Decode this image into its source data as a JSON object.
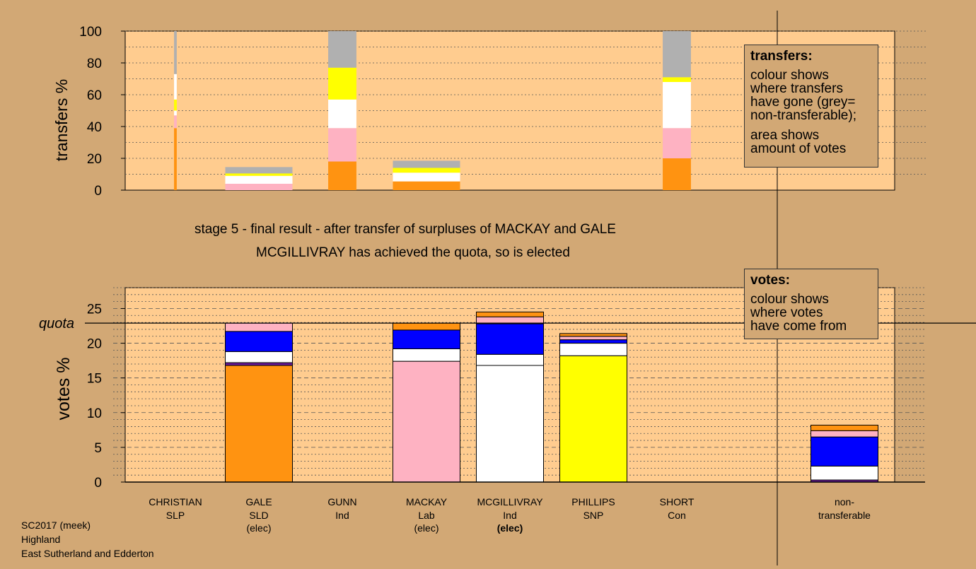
{
  "colors": {
    "background": "#d2a875",
    "plot_bg": "#ffcc8f",
    "orange": "#ff9311",
    "pink": "#feb2c2",
    "white": "#ffffff",
    "yellow": "#ffff00",
    "grey": "#b0b0b0",
    "blue": "#0000ff",
    "purple": "#6a1a9a"
  },
  "captions": {
    "stage": "stage 5 - final result - after transfer of surpluses of MACKAY and GALE",
    "elected": "MCGILLIVRAY has achieved the quota, so is elected"
  },
  "legend_transfers": {
    "heading": "transfers:",
    "lines": [
      "colour shows",
      "where transfers",
      "have gone (grey=",
      "non-transferable);"
    ],
    "lines2": [
      "area shows",
      "amount of votes"
    ]
  },
  "legend_votes": {
    "heading": "votes:",
    "lines": [
      "colour shows",
      "where votes",
      "have come from"
    ]
  },
  "footer": {
    "election": "SC2017 (meek)",
    "council": "Highland",
    "ward": "East Sutherland and Edderton"
  },
  "chart_data": [
    {
      "type": "bar",
      "stacked": true,
      "ylabel": "transfers %",
      "ylim": [
        0,
        100
      ],
      "yticks": [
        0,
        20,
        40,
        60,
        80,
        100
      ],
      "categories": [
        "CHRISTIAN",
        "GALE",
        "GUNN",
        "MACKAY",
        "MCGILLIVRAY",
        "PHILLIPS",
        "SHORT"
      ],
      "bar_widths_relative": [
        0.04,
        1,
        0.42,
        1,
        0,
        0,
        0.42
      ],
      "segments": [
        [],
        [
          {
            "color": "pink",
            "value": 4
          },
          {
            "color": "white",
            "value": 5
          },
          {
            "color": "yellow",
            "value": 1.5
          },
          {
            "color": "grey",
            "value": 4
          }
        ],
        [
          {
            "color": "orange",
            "value": 18
          },
          {
            "color": "pink",
            "value": 21
          },
          {
            "color": "white",
            "value": 18
          },
          {
            "color": "yellow",
            "value": 20
          },
          {
            "color": "grey",
            "value": 23
          }
        ],
        [
          {
            "color": "orange",
            "value": 5.5
          },
          {
            "color": "white",
            "value": 5.5
          },
          {
            "color": "yellow",
            "value": 3
          },
          {
            "color": "grey",
            "value": 4.5
          }
        ],
        [],
        [],
        [
          {
            "color": "orange",
            "value": 20
          },
          {
            "color": "pink",
            "value": 19
          },
          {
            "color": "white",
            "value": 29
          },
          {
            "color": "yellow",
            "value": 3
          },
          {
            "color": "grey",
            "value": 29
          }
        ]
      ],
      "christian_segments": [
        {
          "color": "orange",
          "value": 39
        },
        {
          "color": "pink",
          "value": 8
        },
        {
          "color": "white",
          "value": 3
        },
        {
          "color": "yellow",
          "value": 7
        },
        {
          "color": "white",
          "value": 16
        },
        {
          "color": "grey",
          "value": 27
        }
      ]
    },
    {
      "type": "bar",
      "stacked": true,
      "ylabel": "votes %",
      "ylim": [
        0,
        28
      ],
      "yticks": [
        0,
        5,
        10,
        15,
        20,
        25
      ],
      "quota": 22.9,
      "quota_label": "quota",
      "categories": [
        {
          "name": "CHRISTIAN",
          "party": "SLP",
          "status": ""
        },
        {
          "name": "GALE",
          "party": "SLD",
          "status": "(elec)"
        },
        {
          "name": "GUNN",
          "party": "Ind",
          "status": ""
        },
        {
          "name": "MACKAY",
          "party": "Lab",
          "status": "(elec)"
        },
        {
          "name": "MCGILLIVRAY",
          "party": "Ind",
          "status": "(elec)",
          "status_bold": true
        },
        {
          "name": "PHILLIPS",
          "party": "SNP",
          "status": ""
        },
        {
          "name": "SHORT",
          "party": "Con",
          "status": ""
        }
      ],
      "nontransferable_label_1": "non-",
      "nontransferable_label_2": "transferable",
      "series_stacks": [
        [],
        [
          {
            "color": "orange",
            "value": 16.8
          },
          {
            "color": "purple",
            "value": 0.4
          },
          {
            "color": "white",
            "value": 1.6
          },
          {
            "color": "blue",
            "value": 2.9
          },
          {
            "color": "pink",
            "value": 1.2
          }
        ],
        [],
        [
          {
            "color": "pink",
            "value": 17.4
          },
          {
            "color": "white",
            "value": 1.8
          },
          {
            "color": "blue",
            "value": 2.7
          },
          {
            "color": "orange",
            "value": 1.0
          }
        ],
        [
          {
            "color": "white",
            "value": 16.8
          },
          {
            "color": "white",
            "value": 1.6
          },
          {
            "color": "blue",
            "value": 4.4
          },
          {
            "color": "pink",
            "value": 1.0
          },
          {
            "color": "orange",
            "value": 0.7
          }
        ],
        [
          {
            "color": "yellow",
            "value": 18.2
          },
          {
            "color": "white",
            "value": 1.8
          },
          {
            "color": "blue",
            "value": 0.5
          },
          {
            "color": "pink",
            "value": 0.5
          },
          {
            "color": "orange",
            "value": 0.4
          }
        ],
        []
      ],
      "nontransferable_stack": [
        {
          "color": "purple",
          "value": 0.3
        },
        {
          "color": "white",
          "value": 2.0
        },
        {
          "color": "blue",
          "value": 4.2
        },
        {
          "color": "pink",
          "value": 0.9
        },
        {
          "color": "orange",
          "value": 0.8
        }
      ]
    }
  ]
}
